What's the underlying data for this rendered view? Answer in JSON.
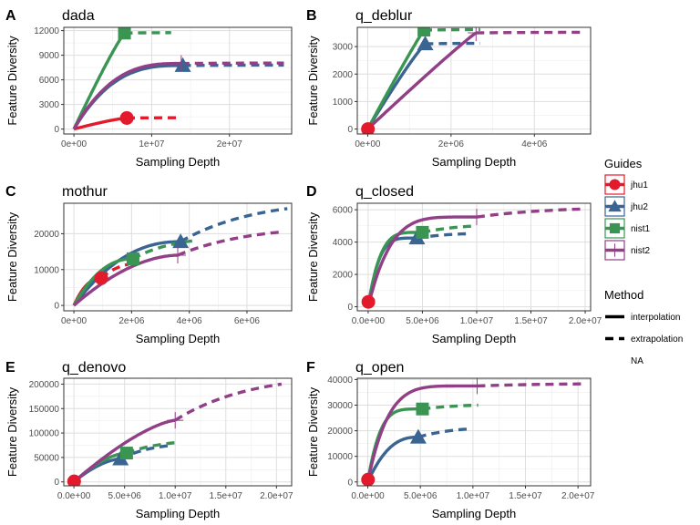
{
  "colors": {
    "jhu1": "#e31a2b",
    "jhu2": "#3a6592",
    "nist1": "#3a9553",
    "nist2": "#913f86"
  },
  "legend": {
    "guides_title": "Guides",
    "guides": [
      {
        "name": "jhu1",
        "shape": "circle"
      },
      {
        "name": "jhu2",
        "shape": "triangle"
      },
      {
        "name": "nist1",
        "shape": "square"
      },
      {
        "name": "nist2",
        "shape": "cross"
      }
    ],
    "method_title": "Method",
    "methods": [
      {
        "label": "interpolation",
        "style": "solid"
      },
      {
        "label": "extrapolation",
        "style": "dashed"
      },
      {
        "label": "NA",
        "style": "none"
      }
    ]
  },
  "chart_data": [
    {
      "type": "line",
      "letter": "A",
      "title": "dada",
      "xlabel": "Sampling Depth",
      "ylabel": "Feature Diversity",
      "xlim": [
        -1300000,
        28000000
      ],
      "ylim": [
        -600,
        12400
      ],
      "xticks": [
        0,
        10000000,
        20000000
      ],
      "xtick_labels": [
        "0e+00",
        "1e+07",
        "2e+07"
      ],
      "yticks": [
        0,
        3000,
        6000,
        9000,
        12000
      ],
      "ytick_labels": [
        "0",
        "3000",
        "6000",
        "9000",
        "12000"
      ],
      "series": [
        {
          "name": "jhu1",
          "x_obs": 6800000,
          "y_obs": 1350,
          "x_end": 13500000,
          "y_end": 1380,
          "k": 0.8
        },
        {
          "name": "jhu2",
          "x_obs": 14000000,
          "y_obs": 7750,
          "x_end": 27000000,
          "y_end": 7800,
          "k": 0.35
        },
        {
          "name": "nist1",
          "x_obs": 6500000,
          "y_obs": 11700,
          "x_end": 12500000,
          "y_end": 11750,
          "k": 0.9
        },
        {
          "name": "nist2",
          "x_obs": 13800000,
          "y_obs": 8000,
          "x_end": 27000000,
          "y_end": 8050,
          "k": 0.35
        }
      ]
    },
    {
      "type": "line",
      "letter": "B",
      "title": "q_deblur",
      "xlabel": "Sampling Depth",
      "ylabel": "Feature Diversity",
      "xlim": [
        -250000,
        5350000
      ],
      "ylim": [
        -180,
        3700
      ],
      "xticks": [
        0,
        2000000,
        4000000
      ],
      "xtick_labels": [
        "0e+00",
        "2e+06",
        "4e+06"
      ],
      "yticks": [
        0,
        1000,
        2000,
        3000
      ],
      "ytick_labels": [
        "0",
        "1000",
        "2000",
        "3000"
      ],
      "series": [
        {
          "name": "jhu1",
          "x_obs": 5000,
          "y_obs": 0,
          "x_end": 5000,
          "y_end": 0,
          "k": 1
        },
        {
          "name": "jhu2",
          "x_obs": 1380000,
          "y_obs": 3100,
          "x_end": 2700000,
          "y_end": 3120,
          "k": 0.9
        },
        {
          "name": "nist1",
          "x_obs": 1350000,
          "y_obs": 3600,
          "x_end": 2700000,
          "y_end": 3620,
          "k": 0.95
        },
        {
          "name": "nist2",
          "x_obs": 2600000,
          "y_obs": 3500,
          "x_end": 5100000,
          "y_end": 3520,
          "k": 0.95
        }
      ]
    },
    {
      "type": "line",
      "letter": "C",
      "title": "mothur",
      "xlabel": "Sampling Depth",
      "ylabel": "Feature Diversity",
      "xlim": [
        -350000,
        7550000
      ],
      "ylim": [
        -1500,
        28500
      ],
      "xticks": [
        0,
        2000000,
        4000000,
        6000000
      ],
      "xtick_labels": [
        "0e+00",
        "2e+06",
        "4e+06",
        "6e+06"
      ],
      "yticks": [
        0,
        10000,
        20000
      ],
      "ytick_labels": [
        "0",
        "10000",
        "20000"
      ],
      "series": [
        {
          "name": "jhu1",
          "x_obs": 950000,
          "y_obs": 7600,
          "x_end": 1900000,
          "y_end": 11500,
          "k": 0.45
        },
        {
          "name": "jhu2",
          "x_obs": 3700000,
          "y_obs": 17800,
          "x_end": 7400000,
          "y_end": 27000,
          "k": 0.45
        },
        {
          "name": "nist1",
          "x_obs": 2050000,
          "y_obs": 13000,
          "x_end": 4100000,
          "y_end": 18000,
          "k": 0.45
        },
        {
          "name": "nist2",
          "x_obs": 3600000,
          "y_obs": 14000,
          "x_end": 7200000,
          "y_end": 20500,
          "k": 0.55
        }
      ]
    },
    {
      "type": "line",
      "letter": "D",
      "title": "q_closed",
      "xlabel": "Sampling Depth",
      "ylabel": "Feature Diversity",
      "xlim": [
        -1000000,
        20500000
      ],
      "ylim": [
        -250,
        6400
      ],
      "xticks": [
        0,
        5000000,
        10000000,
        15000000,
        20000000
      ],
      "xtick_labels": [
        "0.0e+00",
        "5.0e+06",
        "1.0e+07",
        "1.5e+07",
        "2.0e+07"
      ],
      "yticks": [
        0,
        2000,
        4000,
        6000
      ],
      "ytick_labels": [
        "0",
        "2000",
        "4000",
        "6000"
      ],
      "series": [
        {
          "name": "jhu1",
          "x_obs": 20000,
          "y_obs": 300,
          "x_end": 20000,
          "y_end": 300,
          "k": 1
        },
        {
          "name": "jhu2",
          "x_obs": 4500000,
          "y_obs": 4250,
          "x_end": 9300000,
          "y_end": 4520,
          "k": 0.22
        },
        {
          "name": "nist1",
          "x_obs": 5000000,
          "y_obs": 4600,
          "x_end": 10000000,
          "y_end": 5000,
          "k": 0.22
        },
        {
          "name": "nist2",
          "x_obs": 10000000,
          "y_obs": 5550,
          "x_end": 20000000,
          "y_end": 6050,
          "k": 0.2
        }
      ]
    },
    {
      "type": "line",
      "letter": "E",
      "title": "q_denovo",
      "xlabel": "Sampling Depth",
      "ylabel": "Feature Diversity",
      "xlim": [
        -1000000,
        21500000
      ],
      "ylim": [
        -8000,
        212000
      ],
      "xticks": [
        0,
        5000000,
        10000000,
        15000000,
        20000000
      ],
      "xtick_labels": [
        "0.0e+00",
        "5.0e+06",
        "1.0e+07",
        "1.5e+07",
        "2.0e+07"
      ],
      "yticks": [
        0,
        50000,
        100000,
        150000,
        200000
      ],
      "ytick_labels": [
        "0",
        "50000",
        "100000",
        "150000",
        "200000"
      ],
      "series": [
        {
          "name": "jhu1",
          "x_obs": 20000,
          "y_obs": 1000,
          "x_end": 20000,
          "y_end": 1000,
          "k": 1
        },
        {
          "name": "jhu2",
          "x_obs": 4600000,
          "y_obs": 47000,
          "x_end": 9300000,
          "y_end": 74000,
          "k": 0.6
        },
        {
          "name": "nist1",
          "x_obs": 5200000,
          "y_obs": 59000,
          "x_end": 10400000,
          "y_end": 81000,
          "k": 0.6
        },
        {
          "name": "nist2",
          "x_obs": 10000000,
          "y_obs": 126000,
          "x_end": 20500000,
          "y_end": 200000,
          "k": 0.7
        }
      ]
    },
    {
      "type": "line",
      "letter": "F",
      "title": "q_open",
      "xlabel": "Sampling Depth",
      "ylabel": "Feature Diversity",
      "xlim": [
        -1000000,
        21200000
      ],
      "ylim": [
        -1500,
        40500
      ],
      "xticks": [
        0,
        5000000,
        10000000,
        15000000,
        20000000
      ],
      "xtick_labels": [
        "0.0e+00",
        "5.0e+06",
        "1.0e+07",
        "1.5e+07",
        "2.0e+07"
      ],
      "yticks": [
        0,
        10000,
        20000,
        30000,
        40000
      ],
      "ytick_labels": [
        "0",
        "10000",
        "20000",
        "30000",
        "40000"
      ],
      "series": [
        {
          "name": "jhu1",
          "x_obs": 20000,
          "y_obs": 900,
          "x_end": 20000,
          "y_end": 900,
          "k": 1
        },
        {
          "name": "jhu2",
          "x_obs": 4800000,
          "y_obs": 17500,
          "x_end": 9600000,
          "y_end": 20700,
          "k": 0.4
        },
        {
          "name": "nist1",
          "x_obs": 5200000,
          "y_obs": 28500,
          "x_end": 10500000,
          "y_end": 30000,
          "k": 0.22
        },
        {
          "name": "nist2",
          "x_obs": 10400000,
          "y_obs": 37500,
          "x_end": 20500000,
          "y_end": 38300,
          "k": 0.18
        }
      ]
    }
  ]
}
